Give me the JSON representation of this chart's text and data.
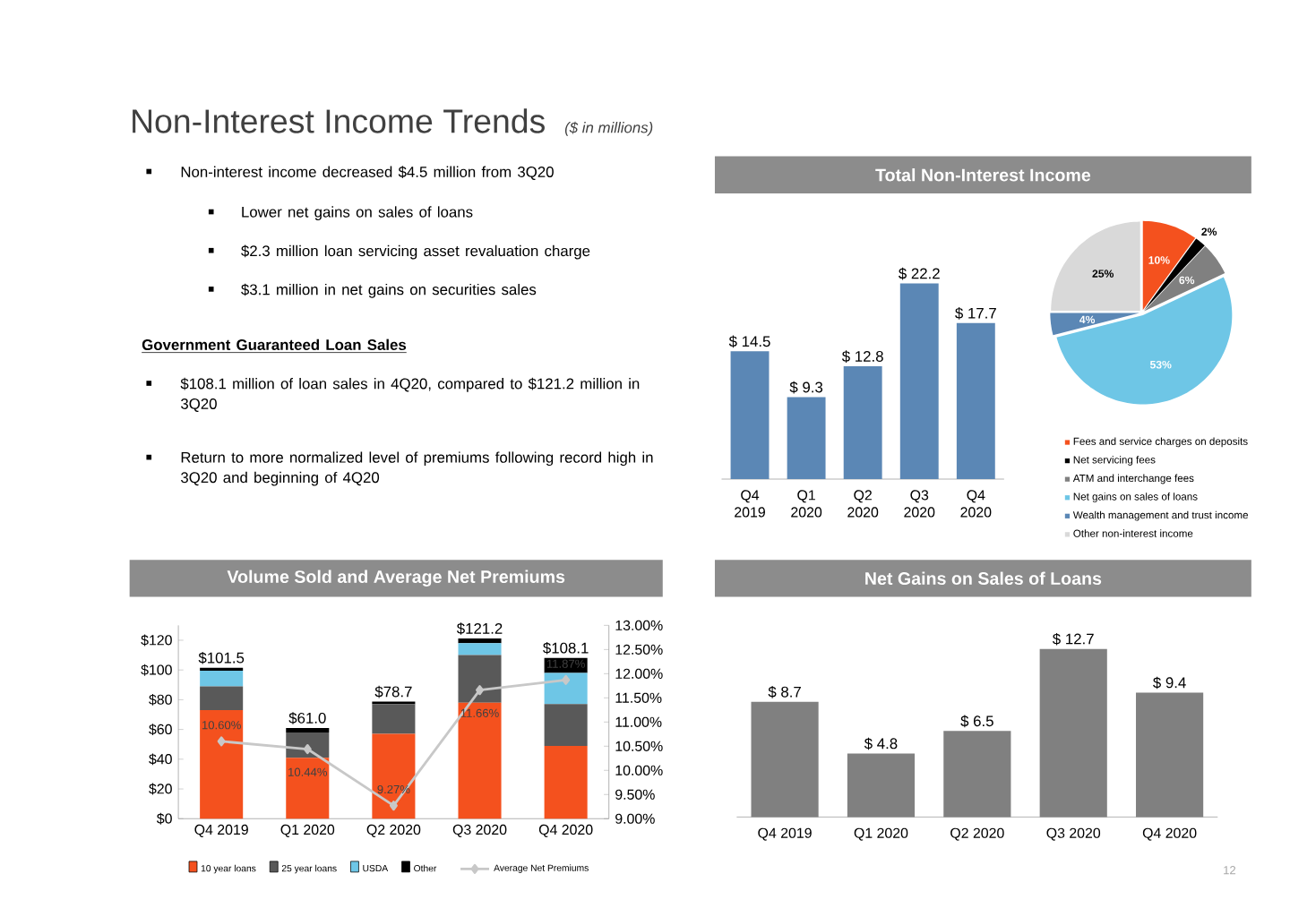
{
  "chart_data": [
    {
      "type": "other",
      "title": "Non-Interest Income Trends",
      "subtitle": "($ in millions)",
      "annotations": [
        "Non-interest income decreased $4.5 million from 3Q20",
        "Lower net gains on sales of loans",
        "$2.3 million loan servicing asset revaluation charge",
        "$3.1 million in net gains on securities sales",
        "Government Guaranteed Loan Sales",
        "$108.1 million of loan sales in 4Q20, compared to $121.2 million in 3Q20",
        "Return to more normalized level of premiums following record high in 3Q20 and beginning of 4Q20",
        "12"
      ]
    },
    {
      "type": "bar",
      "title": "Total Non-Interest Income",
      "categories": [
        "Q4 2019",
        "Q1 2020",
        "Q2 2020",
        "Q3 2020",
        "Q4 2020"
      ],
      "values": [
        14.5,
        9.3,
        12.8,
        22.2,
        17.7
      ],
      "value_labels": [
        "$ 14.5",
        "$ 9.3",
        "$ 12.8",
        "$ 22.2",
        "$ 17.7"
      ],
      "color": "#5b87b5"
    },
    {
      "type": "pie",
      "categories": [
        "Fees and service charges on deposits",
        "Net servicing fees",
        "ATM and interchange fees",
        "Net gains on sales of loans",
        "Wealth management and trust income",
        "Other non-interest income"
      ],
      "values": [
        10,
        2,
        6,
        53,
        4,
        25
      ],
      "value_labels": [
        "10%",
        "2%",
        "6%",
        "53%",
        "4%",
        "25%"
      ],
      "colors": [
        "#f4511e",
        "#000000",
        "#808080",
        "#6ec6e6",
        "#5b87b5",
        "#d9d9d9"
      ],
      "legend": "bottom"
    },
    {
      "type": "bar",
      "title": "Volume Sold and Average Net Premiums",
      "categories": [
        "Q4 2019",
        "Q1 2020",
        "Q2 2020",
        "Q3 2020",
        "Q4 2020"
      ],
      "stacked": true,
      "legend": "bottom",
      "marker": "diamond",
      "series": [
        {
          "name": "10 year loans",
          "color": "#f4511e",
          "values": [
            73,
            41,
            57,
            78,
            49
          ]
        },
        {
          "name": "25 year loans",
          "color": "#595959",
          "values": [
            16,
            17,
            20,
            32,
            28
          ]
        },
        {
          "name": "USDA",
          "color": "#6ec6e6",
          "values": [
            10.5,
            0,
            0,
            8,
            21
          ]
        },
        {
          "name": "Other",
          "color": "#000000",
          "values": [
            2.0,
            3.0,
            1.7,
            3.2,
            10.1
          ]
        },
        {
          "name": "Average Net Premiums",
          "type": "line",
          "axis": "y2",
          "color": "#c8c8c8",
          "values": [
            10.6,
            10.44,
            9.27,
            11.66,
            11.87
          ],
          "value_labels": [
            "10.60%",
            "10.44%",
            "9.27%",
            "11.66%",
            "11.87%"
          ]
        }
      ],
      "totals": [
        "$101.5",
        "$61.0",
        "$78.7",
        "$121.2",
        "$108.1"
      ],
      "ylim": [
        0,
        130
      ],
      "yticks": [
        {
          "value": 0,
          "label": "$0"
        },
        {
          "value": 20,
          "label": "$20"
        },
        {
          "value": 40,
          "label": "$40"
        },
        {
          "value": 60,
          "label": "$60"
        },
        {
          "value": 80,
          "label": "$80"
        },
        {
          "value": 100,
          "label": "$100"
        },
        {
          "value": 120,
          "label": "$120"
        }
      ],
      "y2lim": [
        9,
        13
      ],
      "y2ticks": [
        {
          "value": 9,
          "label": "9.00%"
        },
        {
          "value": 9.5,
          "label": "9.50%"
        },
        {
          "value": 10,
          "label": "10.00%"
        },
        {
          "value": 10.5,
          "label": "10.50%"
        },
        {
          "value": 11,
          "label": "11.00%"
        },
        {
          "value": 11.5,
          "label": "11.50%"
        },
        {
          "value": 12,
          "label": "12.00%"
        },
        {
          "value": 12.5,
          "label": "12.50%"
        },
        {
          "value": 13,
          "label": "13.00%"
        }
      ]
    },
    {
      "type": "bar",
      "title": "Net Gains on Sales of Loans",
      "categories": [
        "Q4 2019",
        "Q1 2020",
        "Q2 2020",
        "Q3 2020",
        "Q4 2020"
      ],
      "values": [
        8.7,
        4.8,
        6.5,
        12.7,
        9.4
      ],
      "value_labels": [
        "$ 8.7",
        "$ 4.8",
        "$ 6.5",
        "$ 12.7",
        "$ 9.4"
      ],
      "color": "#808080"
    }
  ]
}
